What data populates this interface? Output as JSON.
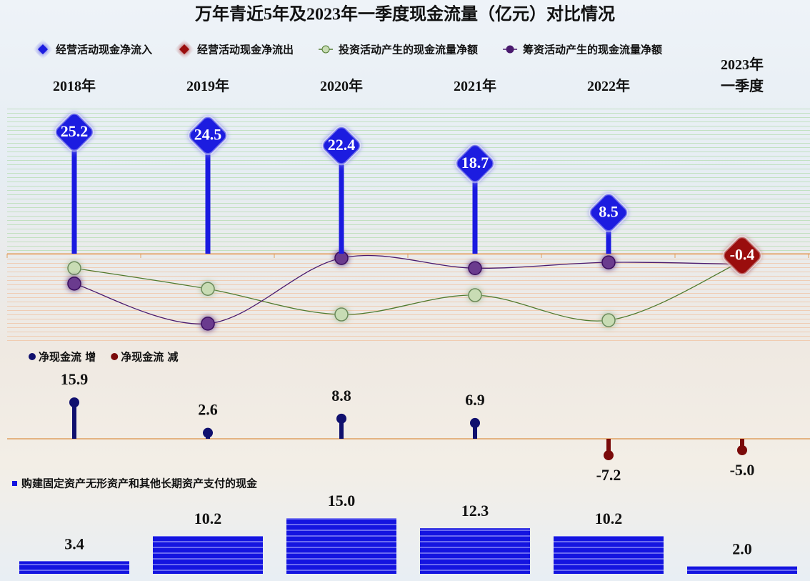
{
  "chart_data": [
    {
      "type": "line",
      "title": "万年青近5年及2023年一季度现金流量（亿元）对比情况",
      "categories": [
        "2018年",
        "2019年",
        "2020年",
        "2021年",
        "2022年",
        "2023年\n一季度"
      ],
      "ylim": [
        -18,
        30
      ],
      "series": [
        {
          "name": "经营活动现金净流入",
          "color": "#1a1ae0",
          "marker": "diamond",
          "values": [
            25.2,
            24.5,
            22.4,
            18.7,
            8.5,
            null
          ]
        },
        {
          "name": "经营活动现金净流出",
          "color": "#9a0a0a",
          "marker": "diamond",
          "values": [
            null,
            null,
            null,
            null,
            null,
            -0.4
          ]
        },
        {
          "name": "投资活动产生的现金流量净额",
          "color": "#4f7a2e",
          "marker": "circle",
          "values": [
            -3.0,
            -7.3,
            -12.6,
            -8.6,
            -13.8,
            -1.5
          ]
        },
        {
          "name": "筹资活动产生的现金流量净额",
          "color": "#4a1a6e",
          "marker": "circle",
          "values": [
            -6.2,
            -14.5,
            -0.9,
            -3.0,
            -1.8,
            -2.2
          ]
        }
      ]
    },
    {
      "type": "lollipop",
      "ylim": [
        -10,
        20
      ],
      "series": [
        {
          "name": "净现金流 增",
          "color": "#10106e",
          "values": [
            15.9,
            2.6,
            8.8,
            6.9,
            null,
            null
          ]
        },
        {
          "name": "净现金流 减",
          "color": "#7a0a0a",
          "values": [
            null,
            null,
            null,
            null,
            -7.2,
            -5.0
          ],
          "value_labels": [
            null,
            null,
            null,
            null,
            "-7.2",
            "-5.0"
          ]
        }
      ]
    },
    {
      "type": "bar",
      "ylim": [
        0,
        16
      ],
      "series": [
        {
          "name": "购建固定资产无形资产和其他长期资产支付的现金",
          "color": "#1414e0",
          "values": [
            3.4,
            10.2,
            15.0,
            12.3,
            10.2,
            2.0
          ],
          "value_labels": [
            "3.4",
            "10.2",
            "15.0",
            "12.3",
            "10.2",
            "2.0"
          ]
        }
      ]
    }
  ]
}
